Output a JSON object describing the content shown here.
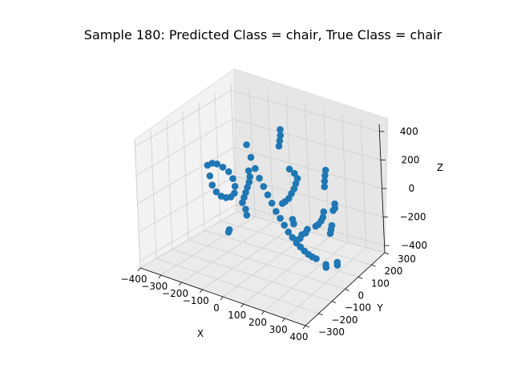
{
  "chart_data": {
    "type": "scatter",
    "projection": "3d",
    "title": "Sample 180: Predicted Class = chair, True Class = chair",
    "xlabel": "X",
    "ylabel": "Y",
    "zlabel": "Z",
    "xlim": [
      -400,
      400
    ],
    "ylim": [
      -300,
      300
    ],
    "zlim": [
      -450,
      450
    ],
    "x_ticks": [
      "−400",
      "−300",
      "−200",
      "−100",
      "0",
      "100",
      "200",
      "300",
      "400"
    ],
    "y_ticks": [
      "−300",
      "−200",
      "−100",
      "0",
      "100",
      "200",
      "300"
    ],
    "z_ticks": [
      "−400",
      "−200",
      "0",
      "200",
      "400"
    ],
    "grid": true,
    "marker_color": "#1f77b4",
    "series": [
      {
        "points": [
          [
            -150,
            90,
            260
          ],
          [
            -130,
            90,
            180
          ],
          [
            -110,
            90,
            110
          ],
          [
            -90,
            90,
            50
          ],
          [
            -70,
            90,
            0
          ],
          [
            -50,
            90,
            -50
          ],
          [
            -30,
            90,
            -100
          ],
          [
            -10,
            90,
            -150
          ],
          [
            10,
            90,
            -190
          ],
          [
            30,
            90,
            -230
          ],
          [
            50,
            90,
            -270
          ],
          [
            70,
            90,
            -300
          ],
          [
            90,
            90,
            -330
          ],
          [
            110,
            90,
            -350
          ],
          [
            130,
            90,
            -370
          ],
          [
            150,
            90,
            -385
          ],
          [
            170,
            90,
            -395
          ],
          [
            190,
            90,
            -400
          ],
          [
            -360,
            90,
            30
          ],
          [
            -350,
            90,
            -40
          ],
          [
            -340,
            90,
            -100
          ],
          [
            -320,
            90,
            -140
          ],
          [
            -295,
            90,
            -160
          ],
          [
            -270,
            90,
            -160
          ],
          [
            -245,
            90,
            -145
          ],
          [
            -225,
            90,
            -110
          ],
          [
            -220,
            90,
            -60
          ],
          [
            -230,
            90,
            -10
          ],
          [
            -250,
            90,
            30
          ],
          [
            -280,
            90,
            50
          ],
          [
            -310,
            90,
            60
          ],
          [
            -335,
            90,
            55
          ],
          [
            -185,
            90,
            -160
          ],
          [
            -175,
            90,
            -120
          ],
          [
            -165,
            90,
            -80
          ],
          [
            -155,
            90,
            -40
          ],
          [
            -145,
            90,
            0
          ],
          [
            -140,
            90,
            40
          ],
          [
            -145,
            90,
            80
          ],
          [
            -170,
            90,
            -200
          ],
          [
            -165,
            90,
            -240
          ],
          [
            60,
            90,
            -30
          ],
          [
            75,
            90,
            10
          ],
          [
            90,
            90,
            50
          ],
          [
            100,
            90,
            90
          ],
          [
            110,
            90,
            130
          ],
          [
            95,
            90,
            160
          ],
          [
            70,
            90,
            180
          ],
          [
            40,
            90,
            -60
          ],
          [
            25,
            90,
            -80
          ],
          [
            150,
            90,
            -210
          ],
          [
            140,
            90,
            -240
          ],
          [
            120,
            90,
            -260
          ],
          [
            110,
            90,
            -290
          ],
          [
            90,
            90,
            -310
          ],
          [
            20,
            90,
            320
          ],
          [
            25,
            90,
            360
          ],
          [
            30,
            90,
            400
          ],
          [
            30,
            90,
            440
          ],
          [
            75,
            90,
            -170
          ],
          [
            80,
            90,
            -200
          ],
          [
            240,
            90,
            -50
          ],
          [
            235,
            90,
            -90
          ],
          [
            225,
            90,
            -120
          ],
          [
            210,
            90,
            -150
          ],
          [
            195,
            90,
            -170
          ],
          [
            -260,
            90,
            -380
          ],
          [
            -265,
            90,
            -400
          ],
          [
            250,
            90,
            130
          ],
          [
            252,
            90,
            170
          ],
          [
            255,
            90,
            210
          ],
          [
            260,
            90,
            250
          ],
          [
            300,
            90,
            30
          ],
          [
            300,
            90,
            0
          ],
          [
            290,
            90,
            -20
          ],
          [
            280,
            90,
            -130
          ],
          [
            275,
            90,
            -160
          ],
          [
            270,
            90,
            -190
          ],
          [
            300,
            90,
            -380
          ],
          [
            300,
            90,
            -400
          ],
          [
            240,
            90,
            -420
          ],
          [
            240,
            90,
            -440
          ]
        ]
      }
    ]
  }
}
